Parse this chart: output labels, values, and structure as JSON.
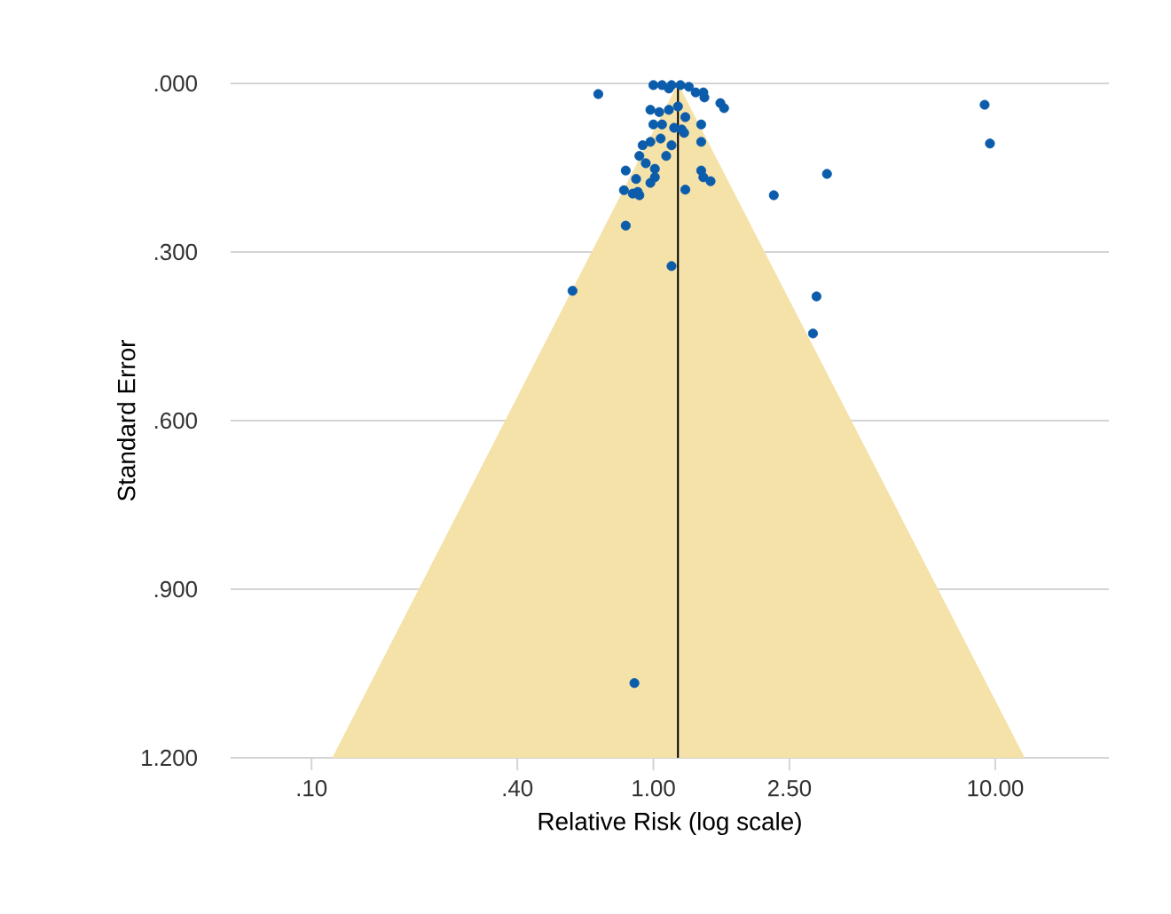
{
  "chart_data": {
    "type": "scatter",
    "xlabel": "Relative Risk (log scale)",
    "ylabel": "Standard Error",
    "log": "x",
    "grid": "y",
    "xlim": [
      0.058,
      21.5
    ],
    "ylim": [
      1.2,
      0
    ],
    "xticks": [
      {
        "value": 0.1,
        "label": ".10"
      },
      {
        "value": 0.4,
        "label": ".40"
      },
      {
        "value": 1,
        "label": "1.00"
      },
      {
        "value": 2.5,
        "label": "2.50"
      },
      {
        "value": 10,
        "label": "10.00"
      }
    ],
    "yticks": [
      {
        "value": 0,
        "label": ".000"
      },
      {
        "value": 0.3,
        "label": ".300"
      },
      {
        "value": 0.6,
        "label": ".600"
      },
      {
        "value": 0.9,
        "label": ".900"
      },
      {
        "value": 1.2,
        "label": "1.200"
      }
    ],
    "ref_lines": [
      {
        "axis": "x",
        "value": 1.18,
        "color": "#000000"
      }
    ],
    "series": [
      {
        "type": "area",
        "color": "#f5e2a9",
        "x": [
          0.115,
          1.18,
          12.2
        ],
        "values": [
          1.2,
          0,
          1.2
        ]
      },
      {
        "marker": "circle",
        "color": "#0b5cab",
        "x": [
          0.69,
          1.0,
          1.06,
          1.13,
          1.2,
          1.27,
          1.11,
          1.33,
          1.41,
          1.4,
          0.98,
          1.04,
          1.11,
          1.18,
          1.0,
          1.06,
          1.15,
          1.24,
          1.21,
          1.38,
          1.57,
          1.61,
          0.98,
          1.05,
          1.13,
          1.23,
          0.93,
          0.91,
          0.95,
          1.01,
          1.09,
          1.38,
          1.01,
          0.98,
          0.83,
          0.89,
          0.87,
          0.91,
          0.82,
          0.9,
          1.24,
          1.38,
          1.4,
          1.47,
          0.83,
          1.13,
          2.25,
          3.22,
          0.58,
          3.0,
          2.93,
          0.88,
          9.31,
          9.65
        ],
        "values": [
          0.019,
          0.003,
          0.003,
          0.003,
          0.003,
          0.006,
          0.009,
          0.016,
          0.025,
          0.016,
          0.047,
          0.051,
          0.047,
          0.041,
          0.073,
          0.073,
          0.079,
          0.06,
          0.082,
          0.073,
          0.035,
          0.044,
          0.104,
          0.098,
          0.11,
          0.088,
          0.11,
          0.129,
          0.142,
          0.152,
          0.129,
          0.104,
          0.167,
          0.177,
          0.155,
          0.17,
          0.196,
          0.199,
          0.19,
          0.193,
          0.189,
          0.155,
          0.167,
          0.174,
          0.253,
          0.325,
          0.199,
          0.161,
          0.369,
          0.379,
          0.445,
          1.067,
          0.038,
          0.107
        ]
      }
    ]
  }
}
